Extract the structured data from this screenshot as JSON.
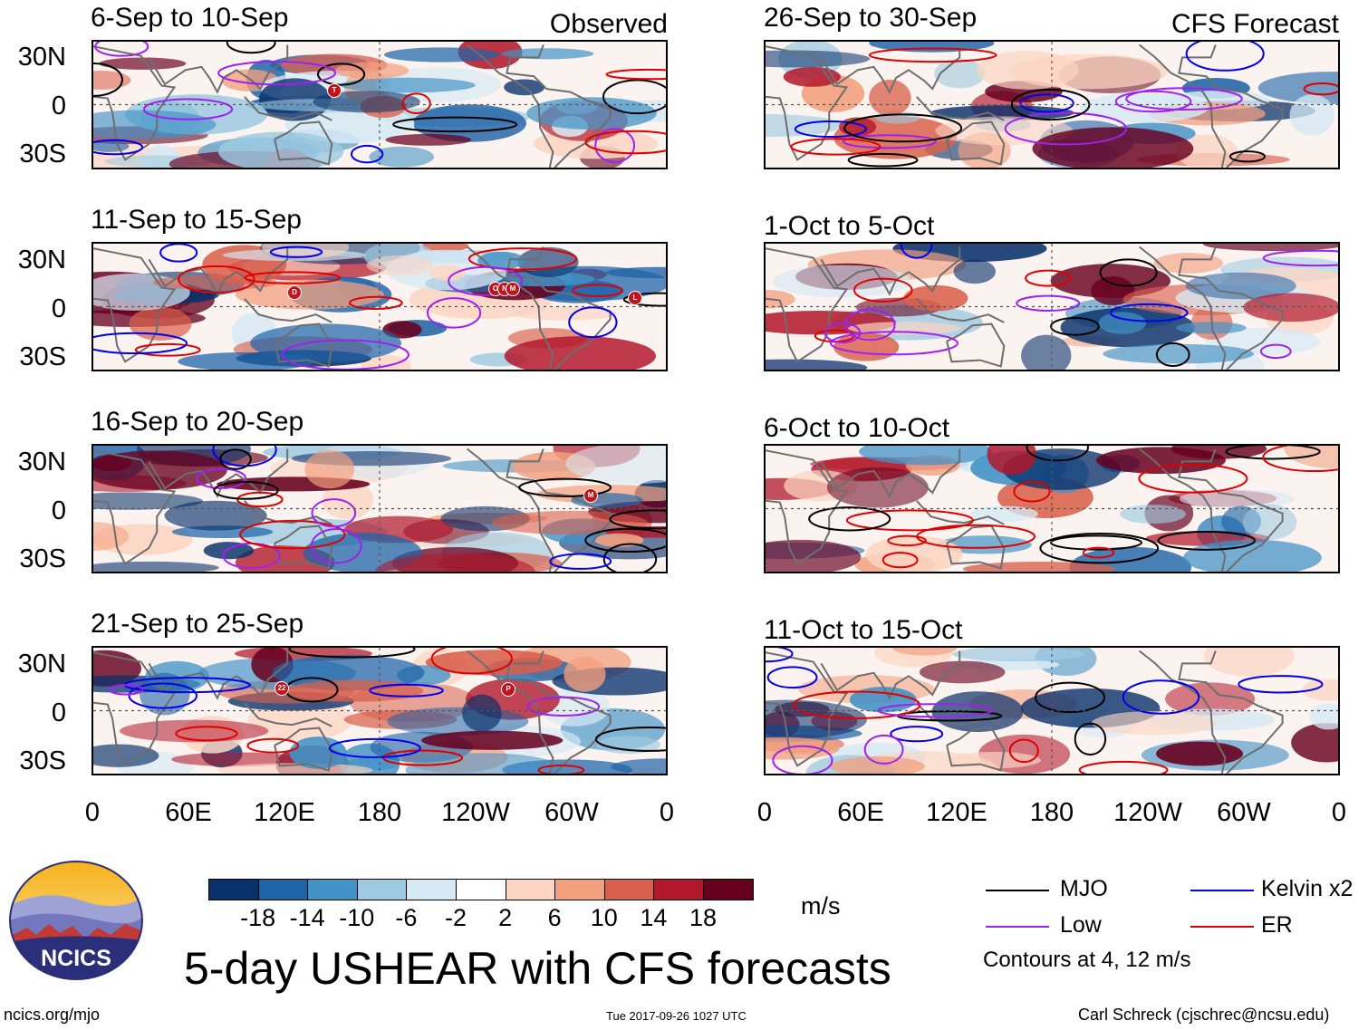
{
  "title": "5-day USHEAR with CFS forecasts",
  "columns": {
    "observed": "Observed",
    "forecast": "CFS Forecast"
  },
  "panels_left": [
    {
      "period": "6-Sep to 10-Sep"
    },
    {
      "period": "11-Sep to 15-Sep"
    },
    {
      "period": "16-Sep to 20-Sep"
    },
    {
      "period": "21-Sep to 25-Sep"
    }
  ],
  "panels_right": [
    {
      "period": "26-Sep to 30-Sep"
    },
    {
      "period": "1-Oct to 5-Oct"
    },
    {
      "period": "6-Oct to 10-Oct"
    },
    {
      "period": "11-Oct to 15-Oct"
    }
  ],
  "lat_labels": [
    "30N",
    "0",
    "30S"
  ],
  "lon_labels": [
    "0",
    "60E",
    "120E",
    "180",
    "120W",
    "60W",
    "0"
  ],
  "colorbar": {
    "unit": "m/s",
    "colors": [
      "#08306b",
      "#1f64a8",
      "#4292c6",
      "#9ecae1",
      "#d6e9f5",
      "#ffffff",
      "#fcd5c2",
      "#f3a07f",
      "#d9604c",
      "#b2182b",
      "#67001f"
    ],
    "tick_labels": [
      "-18",
      "-14",
      "-10",
      "-6",
      "-2",
      "2",
      "6",
      "10",
      "14",
      "18"
    ]
  },
  "legend": {
    "items": [
      {
        "label": "MJO",
        "color": "#000000"
      },
      {
        "label": "Kelvin x2",
        "color": "#0000ee"
      },
      {
        "label": "Low",
        "color": "#a020f0"
      },
      {
        "label": "ER",
        "color": "#e00000"
      }
    ],
    "note": "Contours at 4, 12 m/s"
  },
  "storm_markers": {
    "p0": [
      "T"
    ],
    "p1": [
      "D",
      "O",
      "N",
      "M",
      "L"
    ],
    "p2": [
      "M"
    ],
    "p3": [
      "22",
      "P"
    ]
  },
  "logo_text": "NCICS",
  "footer": {
    "url": "ncics.org/mjo",
    "timestamp": "Tue 2017-09-26 1027 UTC",
    "author": "Carl Schreck (cjschrec@ncsu.edu)"
  }
}
